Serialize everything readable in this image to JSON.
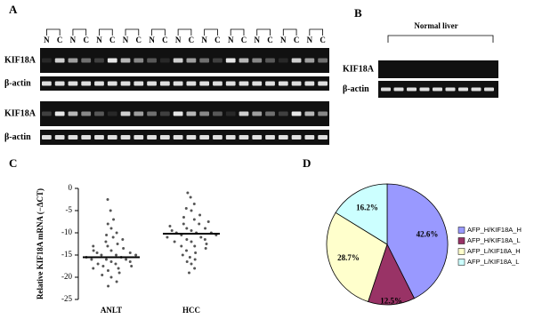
{
  "panel_a": {
    "label": "A",
    "lane_labels": [
      "N",
      "C",
      "N",
      "C",
      "N",
      "C",
      "N",
      "C",
      "N",
      "C",
      "N",
      "C",
      "N",
      "C",
      "N",
      "C",
      "N",
      "C",
      "N",
      "C",
      "N",
      "C"
    ],
    "row_labels": [
      "KIF18A",
      "β-actin",
      "KIF18A",
      "β-actin"
    ]
  },
  "panel_b": {
    "label": "B",
    "group_label": "Normal liver",
    "row_labels": [
      "KIF18A",
      "β-actin"
    ]
  },
  "chart_data": [
    {
      "panel_label": "C",
      "type": "strip",
      "ylabel": "Relative KIF18A mRNA (−ΔCT)",
      "categories": [
        "ANLT",
        "HCC"
      ],
      "points": [
        [
          -2.5,
          -5,
          -7,
          -8,
          -9,
          -10,
          -10.5,
          -11,
          -11.5,
          -12,
          -12.5,
          -13,
          -13,
          -13.5,
          -14,
          -14,
          -14.5,
          -14.5,
          -15,
          -15,
          -15,
          -15.5,
          -15.5,
          -16,
          -16,
          -16,
          -16.5,
          -16.5,
          -17,
          -17,
          -17.5,
          -17.5,
          -18,
          -18,
          -18.5,
          -19,
          -19.5,
          -20,
          -21,
          -22
        ],
        [
          -1,
          -2,
          -3.5,
          -4.5,
          -5,
          -6,
          -6.5,
          -7,
          -7.5,
          -8,
          -8,
          -8.5,
          -9,
          -9,
          -9.5,
          -9.5,
          -10,
          -10,
          -10,
          -10.5,
          -10.5,
          -11,
          -11,
          -11.5,
          -11.5,
          -12,
          -12,
          -12.5,
          -13,
          -13,
          -13.5,
          -14,
          -14.5,
          -15,
          -15.5,
          -16,
          -16.5,
          -17,
          -18,
          -19
        ]
      ],
      "means": [
        -15.5,
        -10.2
      ],
      "ylim": [
        -25,
        0
      ],
      "yticks": [
        0,
        -5,
        -10,
        -15,
        -20,
        -25
      ],
      "color": "#555555"
    },
    {
      "panel_label": "D",
      "type": "pie",
      "categories": [
        "AFP_H/KIF18A_H",
        "AFP_H/KIF18A_L",
        "AFP_L/KIF18A_H",
        "AFP_L/KIF18A_L"
      ],
      "values": [
        42.6,
        12.5,
        28.7,
        16.2
      ],
      "value_labels": [
        "42.6%",
        "12.5%",
        "28.7%",
        "16.2%"
      ],
      "colors": [
        "#9999ff",
        "#993366",
        "#ffffcc",
        "#ccffff"
      ],
      "legend": "right"
    }
  ]
}
